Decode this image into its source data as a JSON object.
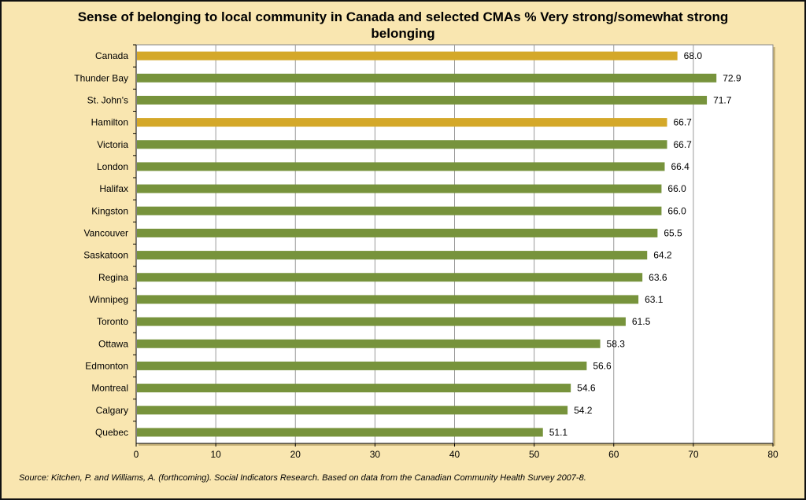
{
  "chart_data": {
    "type": "bar",
    "orientation": "horizontal",
    "title": "Sense of belonging to local community in Canada and selected CMAs % Very strong/somewhat strong belonging",
    "categories": [
      "Canada",
      "Thunder Bay",
      "St. John's",
      "Hamilton",
      "Victoria",
      "London",
      "Halifax",
      "Kingston",
      "Vancouver",
      "Saskatoon",
      "Regina",
      "Winnipeg",
      "Toronto",
      "Ottawa",
      "Edmonton",
      "Montreal",
      "Calgary",
      "Quebec"
    ],
    "values": [
      68.0,
      72.9,
      71.7,
      66.7,
      66.7,
      66.4,
      66.0,
      66.0,
      65.5,
      64.2,
      63.6,
      63.1,
      61.5,
      58.3,
      56.6,
      54.6,
      54.2,
      51.1
    ],
    "value_labels": [
      "68.0",
      "72.9",
      "71.7",
      "66.7",
      "66.7",
      "66.4",
      "66.0",
      "66.0",
      "65.5",
      "64.2",
      "63.6",
      "63.1",
      "61.5",
      "58.3",
      "56.6",
      "54.6",
      "54.2",
      "51.1"
    ],
    "highlighted": [
      "Canada",
      "Hamilton"
    ],
    "xlim": [
      0,
      80
    ],
    "x_ticks": [
      "0",
      "10",
      "20",
      "30",
      "40",
      "50",
      "60",
      "70",
      "80"
    ],
    "xlabel": "",
    "ylabel": "",
    "grid": "vertical",
    "legend": "none"
  },
  "colors": {
    "bar": "#77933c",
    "bar_highlight": "#d4a829",
    "plot_background": "#ffffff",
    "gridline": "#9a9a9a"
  },
  "footer": {
    "source": "Source: Kitchen, P. and Williams, A.  (forthcoming).  Social Indicators Research.  Based on data from the Canadian Community Health Survey 2007-8."
  }
}
